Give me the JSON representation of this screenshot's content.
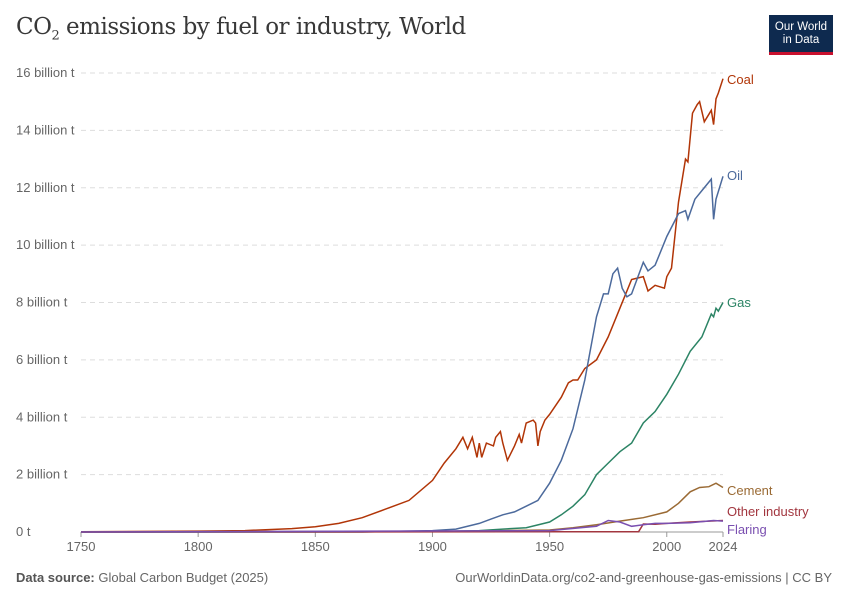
{
  "title_main": "CO",
  "title_sub": "2",
  "title_rest": " emissions by fuel or industry, World",
  "logo": {
    "line1": "Our World",
    "line2": "in Data"
  },
  "footer": {
    "source_label": "Data source:",
    "source": "Global Carbon Budget (2025)",
    "right": "OurWorldinData.org/co2-and-greenhouse-gas-emissions | CC BY"
  },
  "chart_data": {
    "type": "line",
    "ylim": [
      0,
      16
    ],
    "xlim": [
      1750,
      2024
    ],
    "grid": true,
    "legend": "right (inline labels)",
    "yticks": [
      {
        "v": 0,
        "label": "0 t"
      },
      {
        "v": 2,
        "label": "2 billion t"
      },
      {
        "v": 4,
        "label": "4 billion t"
      },
      {
        "v": 6,
        "label": "6 billion t"
      },
      {
        "v": 8,
        "label": "8 billion t"
      },
      {
        "v": 10,
        "label": "10 billion t"
      },
      {
        "v": 12,
        "label": "12 billion t"
      },
      {
        "v": 14,
        "label": "14 billion t"
      },
      {
        "v": 16,
        "label": "16 billion t"
      }
    ],
    "xticks": [
      {
        "v": 1750,
        "label": "1750"
      },
      {
        "v": 1800,
        "label": "1800"
      },
      {
        "v": 1850,
        "label": "1850"
      },
      {
        "v": 1900,
        "label": "1900"
      },
      {
        "v": 1950,
        "label": "1950"
      },
      {
        "v": 2000,
        "label": "2000"
      },
      {
        "v": 2024,
        "label": "2024"
      }
    ],
    "series": [
      {
        "name": "Coal",
        "color": "#b13507",
        "points": [
          [
            1750,
            0.01
          ],
          [
            1800,
            0.03
          ],
          [
            1820,
            0.05
          ],
          [
            1840,
            0.12
          ],
          [
            1850,
            0.18
          ],
          [
            1860,
            0.3
          ],
          [
            1870,
            0.5
          ],
          [
            1880,
            0.8
          ],
          [
            1890,
            1.1
          ],
          [
            1900,
            1.8
          ],
          [
            1905,
            2.4
          ],
          [
            1910,
            2.9
          ],
          [
            1913,
            3.3
          ],
          [
            1915,
            2.9
          ],
          [
            1917,
            3.3
          ],
          [
            1919,
            2.6
          ],
          [
            1920,
            3.1
          ],
          [
            1921,
            2.6
          ],
          [
            1923,
            3.1
          ],
          [
            1926,
            3.0
          ],
          [
            1927,
            3.3
          ],
          [
            1929,
            3.5
          ],
          [
            1930,
            3.1
          ],
          [
            1932,
            2.5
          ],
          [
            1935,
            3.0
          ],
          [
            1937,
            3.4
          ],
          [
            1938,
            3.1
          ],
          [
            1940,
            3.8
          ],
          [
            1943,
            3.9
          ],
          [
            1944,
            3.8
          ],
          [
            1945,
            3.0
          ],
          [
            1946,
            3.5
          ],
          [
            1948,
            3.9
          ],
          [
            1950,
            4.1
          ],
          [
            1955,
            4.7
          ],
          [
            1958,
            5.2
          ],
          [
            1960,
            5.3
          ],
          [
            1962,
            5.3
          ],
          [
            1965,
            5.7
          ],
          [
            1970,
            6.0
          ],
          [
            1975,
            6.8
          ],
          [
            1980,
            7.8
          ],
          [
            1985,
            8.8
          ],
          [
            1990,
            8.9
          ],
          [
            1992,
            8.4
          ],
          [
            1995,
            8.6
          ],
          [
            1999,
            8.5
          ],
          [
            2000,
            8.9
          ],
          [
            2002,
            9.2
          ],
          [
            2005,
            11.5
          ],
          [
            2008,
            13.0
          ],
          [
            2009,
            12.9
          ],
          [
            2011,
            14.6
          ],
          [
            2013,
            14.9
          ],
          [
            2014,
            15.0
          ],
          [
            2016,
            14.3
          ],
          [
            2019,
            14.7
          ],
          [
            2020,
            14.2
          ],
          [
            2021,
            15.1
          ],
          [
            2022,
            15.3
          ],
          [
            2024,
            15.8
          ]
        ]
      },
      {
        "name": "Oil",
        "color": "#4c6a9c",
        "points": [
          [
            1750,
            0
          ],
          [
            1870,
            0.001
          ],
          [
            1900,
            0.05
          ],
          [
            1910,
            0.1
          ],
          [
            1920,
            0.3
          ],
          [
            1925,
            0.45
          ],
          [
            1930,
            0.6
          ],
          [
            1935,
            0.7
          ],
          [
            1940,
            0.9
          ],
          [
            1945,
            1.1
          ],
          [
            1950,
            1.7
          ],
          [
            1955,
            2.5
          ],
          [
            1960,
            3.6
          ],
          [
            1965,
            5.3
          ],
          [
            1970,
            7.5
          ],
          [
            1973,
            8.3
          ],
          [
            1975,
            8.3
          ],
          [
            1977,
            9.0
          ],
          [
            1979,
            9.2
          ],
          [
            1981,
            8.5
          ],
          [
            1983,
            8.2
          ],
          [
            1985,
            8.3
          ],
          [
            1990,
            9.4
          ],
          [
            1992,
            9.1
          ],
          [
            1995,
            9.3
          ],
          [
            2000,
            10.3
          ],
          [
            2005,
            11.1
          ],
          [
            2008,
            11.2
          ],
          [
            2009,
            10.9
          ],
          [
            2012,
            11.6
          ],
          [
            2015,
            11.9
          ],
          [
            2019,
            12.3
          ],
          [
            2020,
            10.9
          ],
          [
            2021,
            11.6
          ],
          [
            2024,
            12.4
          ]
        ]
      },
      {
        "name": "Gas",
        "color": "#2c8465",
        "points": [
          [
            1750,
            0
          ],
          [
            1900,
            0.01
          ],
          [
            1920,
            0.05
          ],
          [
            1930,
            0.1
          ],
          [
            1940,
            0.15
          ],
          [
            1950,
            0.35
          ],
          [
            1955,
            0.6
          ],
          [
            1960,
            0.9
          ],
          [
            1965,
            1.3
          ],
          [
            1970,
            2.0
          ],
          [
            1975,
            2.4
          ],
          [
            1980,
            2.8
          ],
          [
            1985,
            3.1
          ],
          [
            1990,
            3.8
          ],
          [
            1995,
            4.2
          ],
          [
            2000,
            4.8
          ],
          [
            2005,
            5.5
          ],
          [
            2010,
            6.3
          ],
          [
            2015,
            6.8
          ],
          [
            2019,
            7.6
          ],
          [
            2020,
            7.5
          ],
          [
            2021,
            7.8
          ],
          [
            2022,
            7.7
          ],
          [
            2024,
            8.0
          ]
        ]
      },
      {
        "name": "Cement",
        "color": "#9a6a34",
        "points": [
          [
            1750,
            0
          ],
          [
            1920,
            0.03
          ],
          [
            1930,
            0.05
          ],
          [
            1950,
            0.07
          ],
          [
            1960,
            0.15
          ],
          [
            1970,
            0.25
          ],
          [
            1980,
            0.38
          ],
          [
            1990,
            0.5
          ],
          [
            2000,
            0.7
          ],
          [
            2005,
            1.0
          ],
          [
            2010,
            1.4
          ],
          [
            2014,
            1.55
          ],
          [
            2018,
            1.58
          ],
          [
            2021,
            1.7
          ],
          [
            2024,
            1.55
          ]
        ]
      },
      {
        "name": "Other industry",
        "color": "#a2363f",
        "points": [
          [
            1750,
            0
          ],
          [
            1985,
            0.01
          ],
          [
            1988,
            0.01
          ],
          [
            1990,
            0.28
          ],
          [
            1995,
            0.27
          ],
          [
            2000,
            0.3
          ],
          [
            2010,
            0.35
          ],
          [
            2024,
            0.4
          ]
        ]
      },
      {
        "name": "Flaring",
        "color": "#7a4fb0",
        "points": [
          [
            1750,
            0
          ],
          [
            1950,
            0.05
          ],
          [
            1970,
            0.2
          ],
          [
            1975,
            0.4
          ],
          [
            1980,
            0.35
          ],
          [
            1985,
            0.2
          ],
          [
            1990,
            0.25
          ],
          [
            1995,
            0.3
          ],
          [
            2000,
            0.3
          ],
          [
            2010,
            0.32
          ],
          [
            2020,
            0.4
          ],
          [
            2024,
            0.38
          ]
        ]
      }
    ]
  }
}
